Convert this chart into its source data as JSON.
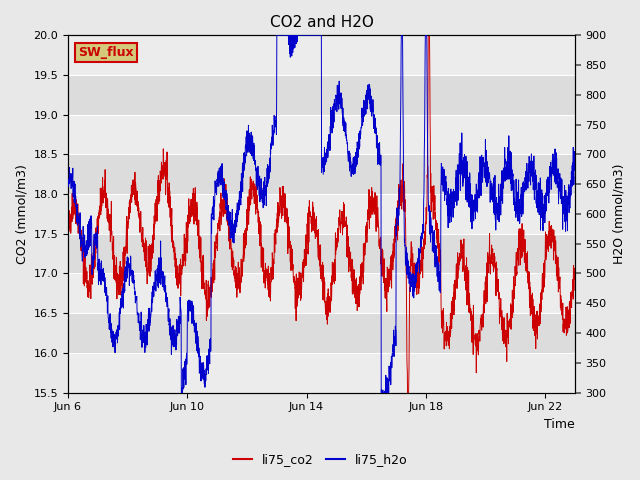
{
  "title": "CO2 and H2O",
  "xlabel": "Time",
  "ylabel_left": "CO2 (mmol/m3)",
  "ylabel_right": "H2O (mmol/m3)",
  "ylim_left": [
    15.5,
    20.0
  ],
  "ylim_right": [
    300,
    900
  ],
  "yticks_left": [
    15.5,
    16.0,
    16.5,
    17.0,
    17.5,
    18.0,
    18.5,
    19.0,
    19.5,
    20.0
  ],
  "yticks_right": [
    300,
    350,
    400,
    450,
    500,
    550,
    600,
    650,
    700,
    750,
    800,
    850,
    900
  ],
  "xtick_positions": [
    0,
    4,
    8,
    12,
    16
  ],
  "xtick_labels": [
    "Jun 6",
    "Jun 10",
    "Jun 14",
    "Jun 18",
    "Jun 22"
  ],
  "xlim": [
    0,
    17
  ],
  "line_co2_color": "#cc0000",
  "line_h2o_color": "#0000cc",
  "legend_label_co2": "li75_co2",
  "legend_label_h2o": "li75_h2o",
  "annotation_text": "SW_flux",
  "annotation_bg": "#d4c87a",
  "annotation_fg": "#cc0000",
  "fig_bg": "#e8e8e8",
  "plot_bg_dark": "#dcdcdc",
  "plot_bg_light": "#ececec",
  "grid_color": "#ffffff",
  "title_fontsize": 11,
  "axis_fontsize": 9,
  "tick_fontsize": 8,
  "legend_fontsize": 9,
  "line_width": 0.7
}
